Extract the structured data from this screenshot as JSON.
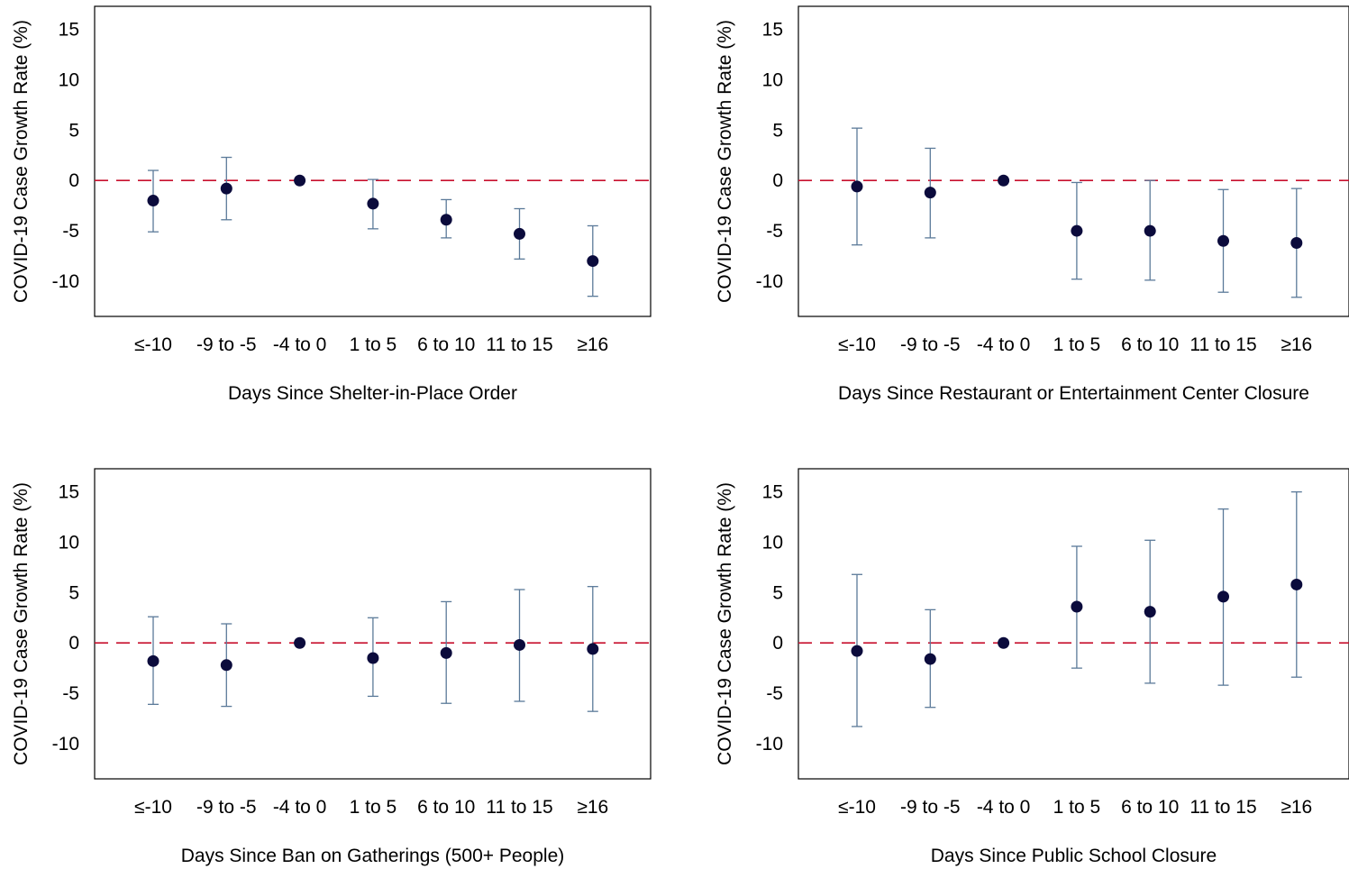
{
  "colors": {
    "point": "#0b0b3c",
    "error_bar": "#5b7a99",
    "reference_line": "#c8102e",
    "frame": "#000000"
  },
  "chart_data": [
    {
      "type": "scatter",
      "subtype": "coefficient plot with 95% error bars",
      "title": "",
      "xlabel": "Days Since Shelter-in-Place Order",
      "ylabel": "COVID-19 Case Growth Rate (%)",
      "categories": [
        "≤-10",
        "-9 to -5",
        "-4 to 0",
        "1 to 5",
        "6 to 10",
        "11 to 15",
        "≥16"
      ],
      "values": [
        -2.0,
        -0.8,
        0.0,
        -2.3,
        -3.9,
        -5.3,
        -8.0
      ],
      "lower": [
        -5.1,
        -3.9,
        0.0,
        -4.8,
        -5.7,
        -7.8,
        -11.5
      ],
      "upper": [
        1.0,
        2.3,
        0.0,
        0.1,
        -1.9,
        -2.8,
        -4.5
      ],
      "yticks": [
        15,
        10,
        5,
        0,
        -5,
        -10
      ],
      "ylim": [
        -13.5,
        17.3
      ],
      "reference_line_y": 0,
      "grid": false,
      "legend": "none"
    },
    {
      "type": "scatter",
      "subtype": "coefficient plot with 95% error bars",
      "title": "",
      "xlabel": "Days Since Restaurant or Entertainment Center Closure",
      "ylabel": "COVID-19 Case Growth Rate (%)",
      "categories": [
        "≤-10",
        "-9 to -5",
        "-4 to 0",
        "1 to 5",
        "6 to 10",
        "11 to 15",
        "≥16"
      ],
      "values": [
        -0.6,
        -1.2,
        0.0,
        -5.0,
        -5.0,
        -6.0,
        -6.2
      ],
      "lower": [
        -6.4,
        -5.7,
        0.0,
        -9.8,
        -9.9,
        -11.1,
        -11.6
      ],
      "upper": [
        5.2,
        3.2,
        0.0,
        -0.2,
        0.0,
        -0.9,
        -0.8
      ],
      "yticks": [
        15,
        10,
        5,
        0,
        -5,
        -10
      ],
      "ylim": [
        -13.5,
        17.3
      ],
      "reference_line_y": 0,
      "grid": false,
      "legend": "none"
    },
    {
      "type": "scatter",
      "subtype": "coefficient plot with 95% error bars",
      "title": "",
      "xlabel": "Days Since Ban on Gatherings (500+ People)",
      "ylabel": "COVID-19 Case Growth Rate (%)",
      "categories": [
        "≤-10",
        "-9 to -5",
        "-4 to 0",
        "1 to 5",
        "6 to 10",
        "11 to 15",
        "≥16"
      ],
      "values": [
        -1.8,
        -2.2,
        0.0,
        -1.5,
        -1.0,
        -0.2,
        -0.6
      ],
      "lower": [
        -6.1,
        -6.3,
        0.0,
        -5.3,
        -6.0,
        -5.8,
        -6.8
      ],
      "upper": [
        2.6,
        1.9,
        0.0,
        2.5,
        4.1,
        5.3,
        5.6
      ],
      "yticks": [
        15,
        10,
        5,
        0,
        -5,
        -10
      ],
      "ylim": [
        -13.5,
        17.3
      ],
      "reference_line_y": 0,
      "grid": false,
      "legend": "none"
    },
    {
      "type": "scatter",
      "subtype": "coefficient plot with 95% error bars",
      "title": "",
      "xlabel": "Days Since Public School Closure",
      "ylabel": "COVID-19 Case Growth Rate (%)",
      "categories": [
        "≤-10",
        "-9 to -5",
        "-4 to 0",
        "1 to 5",
        "6 to 10",
        "11 to 15",
        "≥16"
      ],
      "values": [
        -0.8,
        -1.6,
        0.0,
        3.6,
        3.1,
        4.6,
        5.8
      ],
      "lower": [
        -8.3,
        -6.4,
        0.0,
        -2.5,
        -4.0,
        -4.2,
        -3.4
      ],
      "upper": [
        6.8,
        3.3,
        0.0,
        9.6,
        10.2,
        13.3,
        15.0
      ],
      "yticks": [
        15,
        10,
        5,
        0,
        -5,
        -10
      ],
      "ylim": [
        -13.5,
        17.3
      ],
      "reference_line_y": 0,
      "grid": false,
      "legend": "none"
    }
  ]
}
